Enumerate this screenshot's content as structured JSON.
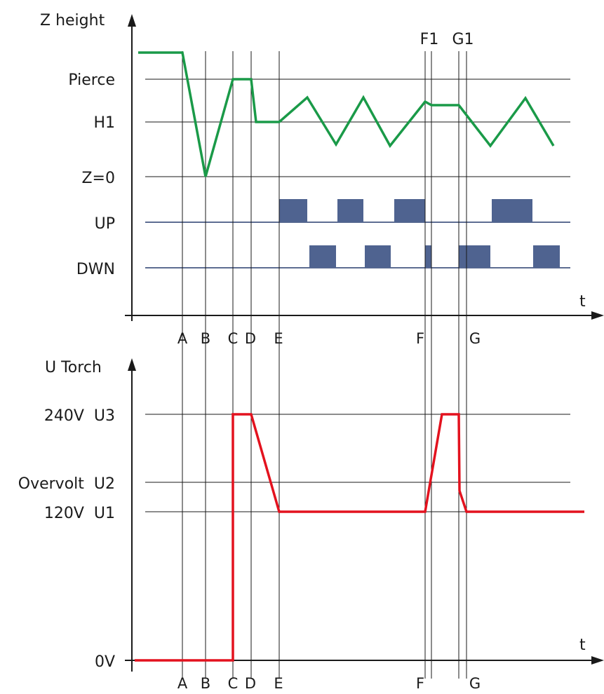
{
  "top": {
    "axis_label": "Z height",
    "t_label": "t",
    "levels": [
      "Pierce",
      "H1",
      "Z=0"
    ],
    "signals": [
      "UP",
      "DWN"
    ],
    "event_labels": [
      "A",
      "B",
      "C",
      "D",
      "E",
      "F",
      "G"
    ],
    "marker_labels": [
      "F1",
      "G1"
    ],
    "colors": {
      "trace": "#1a9a48",
      "signal_block": "#4f6390",
      "signal_line": "#5d6d92",
      "grid": "#1a1a1a"
    }
  },
  "bottom": {
    "axis_label": "U Torch",
    "t_label": "t",
    "levels": [
      "240V  U3",
      "Overvolt  U2",
      "120V  U1"
    ],
    "origin_label": "0V",
    "event_labels": [
      "A",
      "B",
      "C",
      "D",
      "E",
      "F",
      "G"
    ],
    "colors": {
      "trace": "#e3121e",
      "grid": "#1a1a1a"
    }
  }
}
